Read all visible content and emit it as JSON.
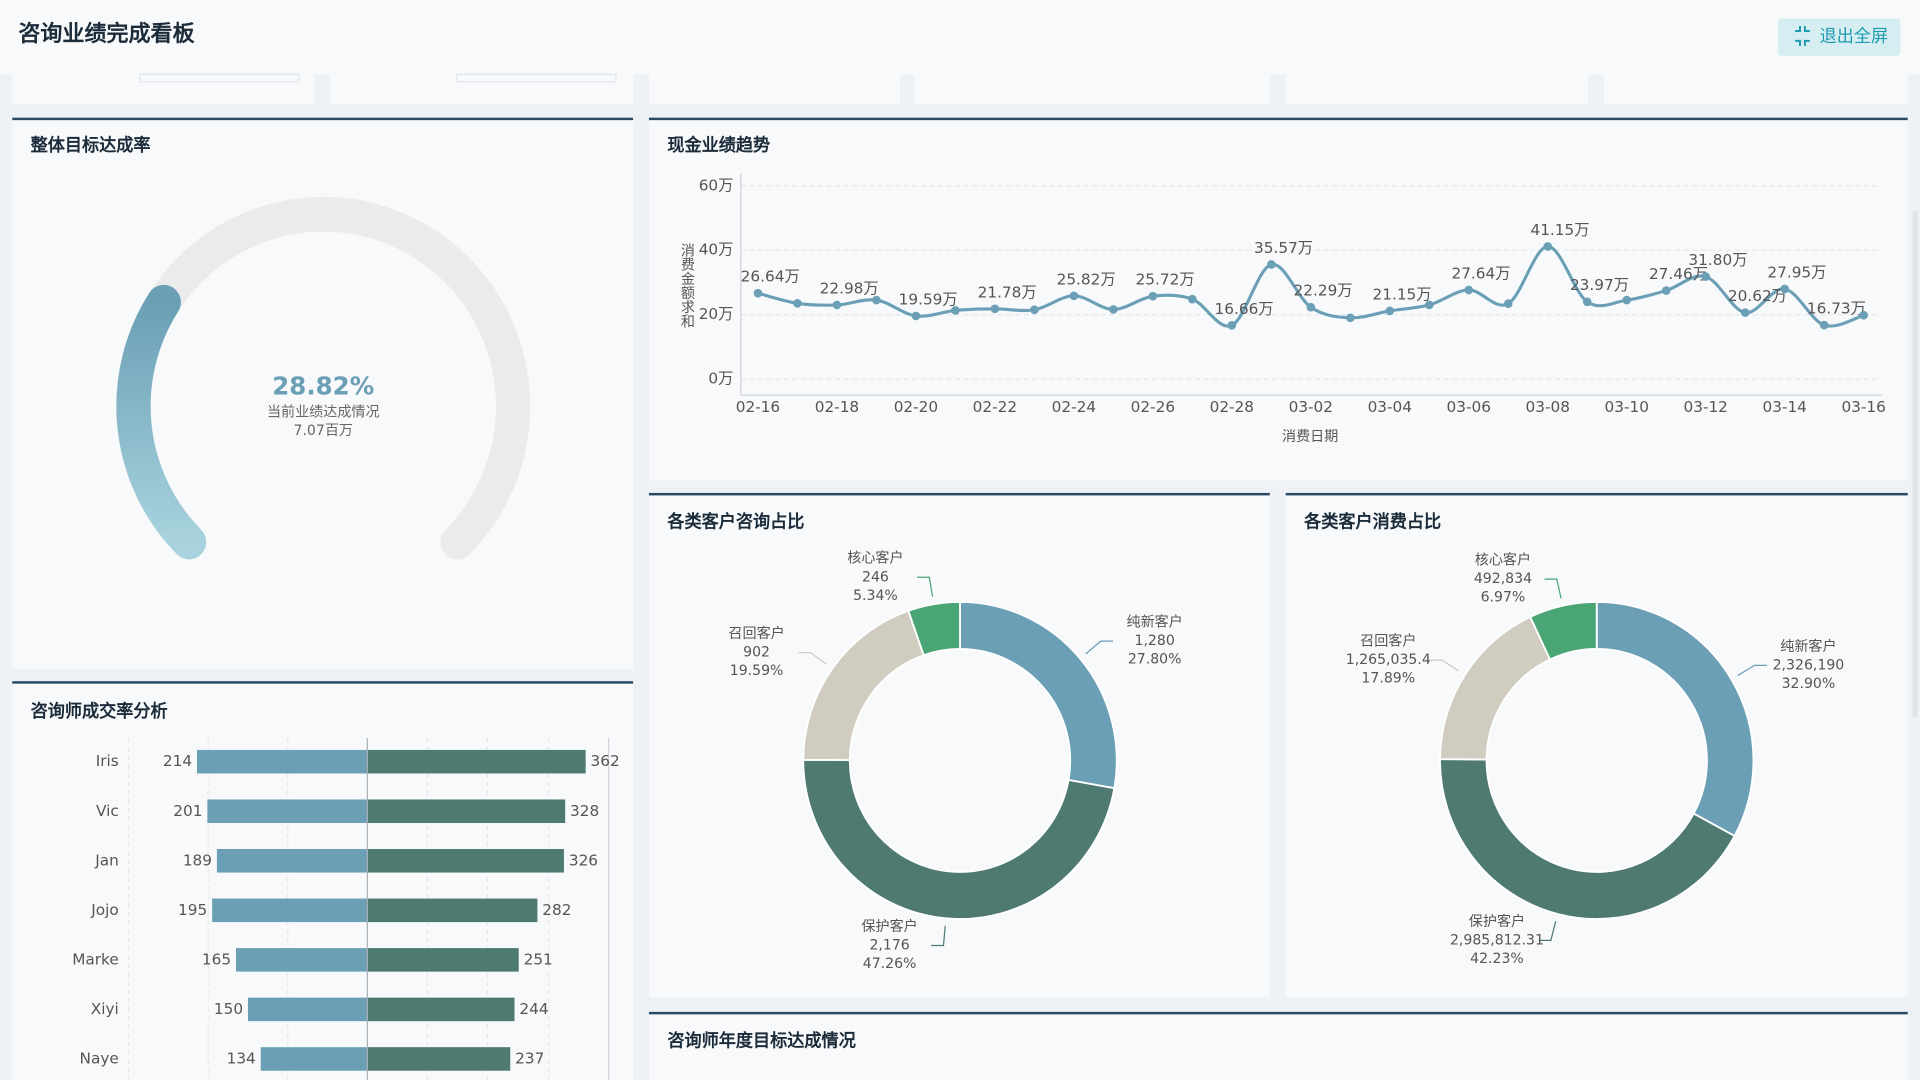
{
  "header": {
    "title": "咨询业绩完成看板",
    "button": "退出全屏"
  },
  "chart_data": [
    {
      "type": "gauge",
      "title": "整体目标达成率",
      "values": [
        28.82
      ],
      "value_labels": [
        "28.82%"
      ],
      "ylim": [
        0,
        100
      ],
      "annotations": [
        "当前业绩达成情况",
        "7.07百万"
      ],
      "color": "#6a9fb5"
    },
    {
      "type": "line",
      "title": "现金业绩趋势",
      "x_label": "消费日期",
      "y_label": "消费金额求和",
      "color": "#6a9fb5",
      "grid": true,
      "categories": [
        "02-16",
        null,
        "02-18",
        null,
        "02-20",
        null,
        "02-22",
        null,
        "02-24",
        null,
        "02-26",
        null,
        "02-28",
        null,
        "03-02",
        null,
        "03-04",
        null,
        "03-06",
        null,
        "03-08",
        null,
        "03-10",
        null,
        "03-12",
        null,
        "03-14",
        null,
        "03-16"
      ],
      "values": [
        26.64,
        23.5,
        22.98,
        24.5,
        19.59,
        21.3,
        21.78,
        21.5,
        25.82,
        21.6,
        25.72,
        24.8,
        16.66,
        35.57,
        22.29,
        19.0,
        21.15,
        23.0,
        27.64,
        23.4,
        41.15,
        23.97,
        24.5,
        27.46,
        31.8,
        20.62,
        27.95,
        16.73,
        19.8
      ],
      "value_labels": [
        "26.64万",
        null,
        "22.98万",
        null,
        "19.59万",
        null,
        "21.78万",
        null,
        "25.82万",
        null,
        "25.72万",
        null,
        "16.66万",
        "35.57万",
        "22.29万",
        null,
        "21.15万",
        null,
        "27.64万",
        null,
        "41.15万",
        "23.97万",
        null,
        "27.46万",
        "31.80万",
        "20.62万",
        "27.95万",
        "16.73万",
        null
      ],
      "ylim": [
        0,
        60
      ],
      "yticks": [
        {
          "value": 0,
          "label": "0万"
        },
        {
          "value": 20,
          "label": "20万"
        },
        {
          "value": 40,
          "label": "40万"
        },
        {
          "value": 60,
          "label": "60万"
        }
      ]
    },
    {
      "type": "donut",
      "title": "各类客户咨询占比",
      "categories": [
        "纯新客户",
        "保护客户",
        "召回客户",
        "核心客户"
      ],
      "values": [
        1280,
        2176,
        902,
        246
      ],
      "value_labels": [
        "1,280",
        "2,176",
        "902",
        "246"
      ],
      "percents": [
        27.8,
        47.26,
        19.59,
        5.34
      ],
      "percent_labels": [
        "27.80%",
        "47.26%",
        "19.59%",
        "5.34%"
      ],
      "colors": [
        "#6a9fb5",
        "#4f7a72",
        "#d1ccc0",
        "#4aa574"
      ]
    },
    {
      "type": "donut",
      "title": "各类客户消费占比",
      "categories": [
        "纯新客户",
        "保护客户",
        "召回客户",
        "核心客户"
      ],
      "values": [
        2326190,
        2985812.31,
        1265035.4,
        492834
      ],
      "value_labels": [
        "2,326,190",
        "2,985,812.31",
        "1,265,035.4",
        "492,834"
      ],
      "percents": [
        32.9,
        42.23,
        17.89,
        6.97
      ],
      "percent_labels": [
        "32.90%",
        "42.23%",
        "17.89%",
        "6.97%"
      ],
      "colors": [
        "#6a9fb5",
        "#4f7a72",
        "#d1ccc0",
        "#4aa574"
      ]
    },
    {
      "type": "diverging_bar",
      "title": "咨询师成交率分析",
      "categories": [
        "Iris",
        "Vic",
        "Jan",
        "Jojo",
        "Marke",
        "Xiyi",
        "Naye"
      ],
      "series": [
        {
          "color": "#6a9fb5",
          "values": [
            214,
            201,
            189,
            195,
            165,
            150,
            134
          ],
          "xlim": [
            0,
            300
          ]
        },
        {
          "color": "#4f7a72",
          "values": [
            362,
            328,
            326,
            282,
            251,
            244,
            237
          ],
          "xlim": [
            0,
            400
          ]
        }
      ]
    },
    {
      "type": "bar",
      "title": "咨询师年度目标达成情况"
    }
  ]
}
